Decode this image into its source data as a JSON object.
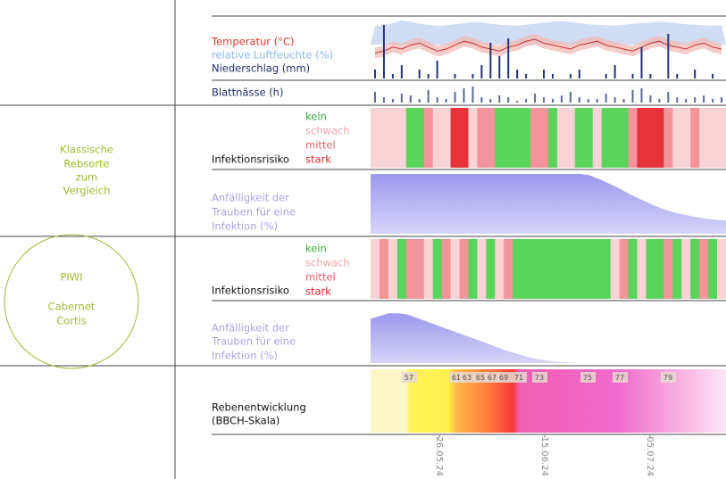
{
  "weather": {
    "temperature_label": "Temperatur (°C)",
    "humidity_label": "relative Luftfeuchte (%)",
    "precipitation_label": "Niederschlag (mm)",
    "temperature": [
      18,
      19,
      21,
      20,
      22,
      23,
      21,
      19,
      20,
      22,
      24,
      23,
      21,
      20,
      19,
      21,
      22,
      24,
      25,
      23,
      22,
      21,
      20,
      22,
      23,
      24,
      22,
      21,
      20,
      19,
      21,
      23,
      24,
      22,
      21,
      20,
      22,
      23,
      21,
      20
    ],
    "humidity": [
      70,
      72,
      80,
      90,
      85,
      78,
      74,
      70,
      72,
      76,
      80,
      84,
      82,
      78,
      74,
      72,
      70,
      74,
      78,
      82,
      86,
      88,
      84,
      80,
      76,
      74,
      72,
      70,
      74,
      78,
      80,
      82,
      86,
      84,
      80,
      76,
      74,
      72,
      70,
      72
    ],
    "precipitation": [
      2,
      12,
      1,
      3,
      0,
      2,
      1,
      4,
      0,
      1,
      0,
      1,
      3,
      8,
      5,
      9,
      2,
      1,
      0,
      2,
      1,
      0,
      1,
      2,
      0,
      0,
      1,
      3,
      0,
      1,
      7,
      1,
      0,
      10,
      1,
      0,
      2,
      0,
      1,
      0
    ],
    "leaf_wetness_label": "Blattnässe (h)",
    "leaf_wetness": [
      6,
      3,
      2,
      5,
      4,
      2,
      7,
      3,
      2,
      6,
      8,
      9,
      3,
      2,
      4,
      3,
      1,
      2,
      5,
      3,
      2,
      4,
      6,
      3,
      2,
      2,
      5,
      3,
      2,
      7,
      8,
      4,
      2,
      6,
      3,
      2,
      3,
      4,
      2,
      3
    ]
  },
  "risk_legend": {
    "none": "kein",
    "weak": "schwach",
    "medium": "mittel",
    "strong": "stark"
  },
  "classic": {
    "label_lines": [
      "Klassische",
      "Rebsorte",
      "zum",
      "Vergleich"
    ],
    "risk_label": "Infektionsrisiko",
    "risk": [
      1,
      1,
      1,
      1,
      0,
      0,
      2,
      1,
      1,
      3,
      3,
      1,
      2,
      2,
      0,
      0,
      0,
      0,
      2,
      2,
      0,
      1,
      1,
      0,
      0,
      1,
      0,
      0,
      0,
      2,
      3,
      3,
      3,
      2,
      1,
      1,
      2,
      1,
      1,
      1
    ],
    "susceptibility_lines": [
      "Anfälligkeit der",
      "Trauben für eine",
      "Infektion (%)"
    ],
    "susceptibility": [
      100,
      100,
      100,
      100,
      100,
      100,
      100,
      100,
      100,
      100,
      100,
      100,
      100,
      100,
      100,
      100,
      100,
      100,
      100,
      100,
      100,
      100,
      100,
      100,
      98,
      92,
      85,
      78,
      70,
      62,
      55,
      48,
      42,
      37,
      33,
      30,
      27,
      25,
      23,
      22
    ]
  },
  "piwi": {
    "label_lines": [
      "PIWI",
      "Cabernet",
      "Cortis"
    ],
    "risk_label": "Infektionsrisiko",
    "risk": [
      1,
      2,
      1,
      0,
      2,
      2,
      1,
      0,
      2,
      1,
      2,
      0,
      1,
      0,
      1,
      2,
      0,
      0,
      0,
      0,
      0,
      0,
      0,
      0,
      0,
      0,
      0,
      1,
      2,
      0,
      1,
      0,
      0,
      2,
      0,
      1,
      0,
      2,
      0,
      1
    ],
    "susceptibility_lines": [
      "Anfälligkeit der",
      "Trauben für eine",
      "Infektion (%)"
    ],
    "susceptibility": [
      80,
      85,
      90,
      90,
      88,
      82,
      76,
      70,
      64,
      58,
      52,
      46,
      40,
      34,
      28,
      22,
      17,
      12,
      8,
      5,
      3,
      2,
      1,
      0,
      0,
      0,
      0,
      0,
      0,
      0,
      0,
      0,
      0,
      0,
      0,
      0,
      0,
      0,
      0,
      0
    ]
  },
  "phenology": {
    "label_lines": [
      "Rebenentwicklung",
      "(BBCH-Skala)"
    ],
    "stages": [
      57,
      61,
      63,
      65,
      67,
      69,
      71,
      73,
      75,
      77,
      79
    ]
  },
  "dates": [
    "26.05.24",
    "15.06.24",
    "05.07.24"
  ]
}
